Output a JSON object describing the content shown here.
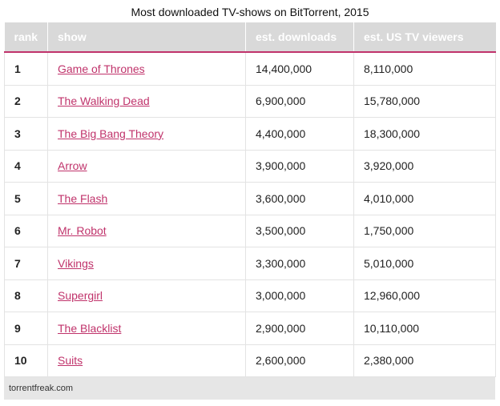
{
  "title": "Most downloaded TV-shows on BitTorrent, 2015",
  "columns": [
    "rank",
    "show",
    "est. downloads",
    "est. US TV viewers"
  ],
  "rows": [
    {
      "rank": "1",
      "show": "Game of Thrones",
      "downloads": "14,400,000",
      "viewers": "8,110,000"
    },
    {
      "rank": "2",
      "show": "The Walking Dead",
      "downloads": "6,900,000",
      "viewers": "15,780,000"
    },
    {
      "rank": "3",
      "show": "The Big Bang Theory",
      "downloads": "4,400,000",
      "viewers": "18,300,000"
    },
    {
      "rank": "4",
      "show": "Arrow",
      "downloads": "3,900,000",
      "viewers": "3,920,000"
    },
    {
      "rank": "5",
      "show": "The Flash",
      "downloads": "3,600,000",
      "viewers": "4,010,000"
    },
    {
      "rank": "6",
      "show": "Mr. Robot",
      "downloads": "3,500,000",
      "viewers": "1,750,000"
    },
    {
      "rank": "7",
      "show": "Vikings",
      "downloads": "3,300,000",
      "viewers": "5,010,000"
    },
    {
      "rank": "8",
      "show": "Supergirl",
      "downloads": "3,000,000",
      "viewers": "12,960,000"
    },
    {
      "rank": "9",
      "show": "The Blacklist",
      "downloads": "2,900,000",
      "viewers": "10,110,000"
    },
    {
      "rank": "10",
      "show": "Suits",
      "downloads": "2,600,000",
      "viewers": "2,380,000"
    }
  ],
  "source": "torrentfreak.com",
  "colors": {
    "accent": "#c0336b",
    "header_bg": "#d9d9d9",
    "footer_bg": "#e6e6e6"
  }
}
